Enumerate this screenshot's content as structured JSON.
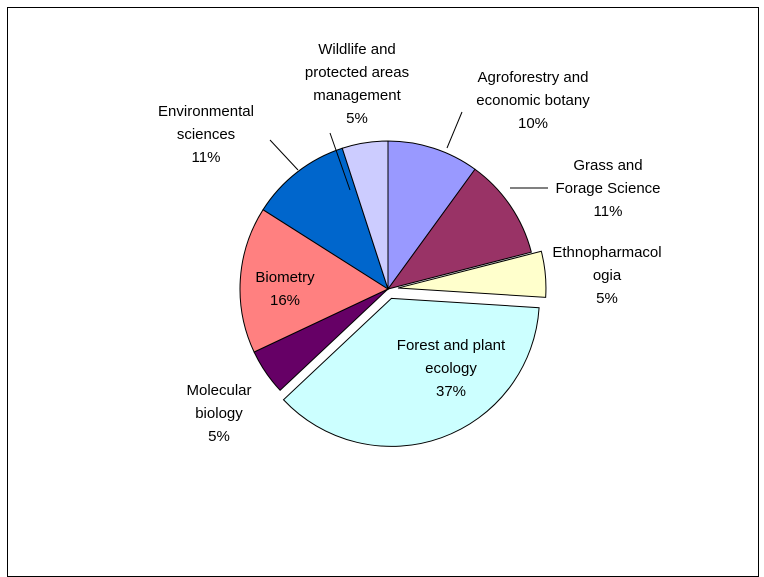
{
  "chart_data": {
    "type": "pie",
    "title": "",
    "legend": "none",
    "slices": [
      {
        "label": "Agroforestry and economic botany",
        "label_lines": [
          "Agroforestry and",
          "economic botany"
        ],
        "value": 10,
        "pct_label": "10%",
        "color": "#9999FF",
        "exploded": false
      },
      {
        "label": "Grass and Forage Science",
        "label_lines": [
          "Grass and",
          "Forage Science"
        ],
        "value": 11,
        "pct_label": "11%",
        "color": "#993366",
        "exploded": false
      },
      {
        "label": "Ethnopharmacologia",
        "label_lines": [
          "Ethnopharmacol",
          "ogia"
        ],
        "value": 5,
        "pct_label": "5%",
        "color": "#FFFFCC",
        "exploded": true
      },
      {
        "label": "Forest and plant ecology",
        "label_lines": [
          "Forest and plant",
          "ecology"
        ],
        "value": 37,
        "pct_label": "37%",
        "color": "#CCFFFF",
        "exploded": true
      },
      {
        "label": "Molecular biology",
        "label_lines": [
          "Molecular",
          "biology"
        ],
        "value": 5,
        "pct_label": "5%",
        "color": "#660066",
        "exploded": false
      },
      {
        "label": "Biometry",
        "label_lines": [
          "Biometry"
        ],
        "value": 16,
        "pct_label": "16%",
        "color": "#FF8080",
        "exploded": false
      },
      {
        "label": "Environmental sciences",
        "label_lines": [
          "Environmental",
          "sciences"
        ],
        "value": 11,
        "pct_label": "11%",
        "color": "#0066CC",
        "exploded": false
      },
      {
        "label": "Wildlife and protected areas management",
        "label_lines": [
          "Wildlife and",
          "protected areas",
          "management"
        ],
        "value": 5,
        "pct_label": "5%",
        "color": "#CCCCFF",
        "exploded": false
      }
    ]
  }
}
